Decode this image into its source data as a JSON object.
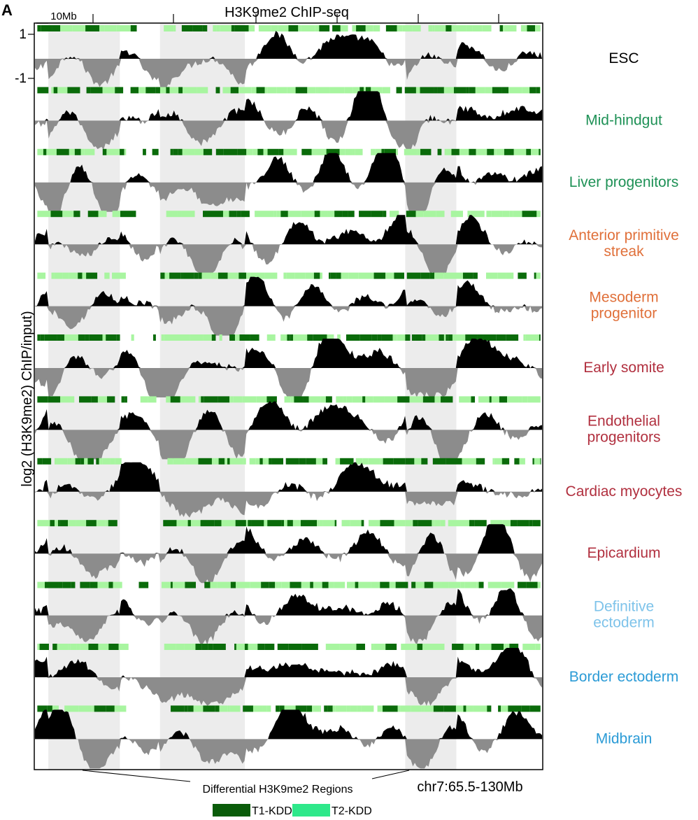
{
  "panel_letter": "A",
  "title": "H3K9me2 ChIP-seq",
  "scale_bar_label": "10Mb",
  "y_axis_label": "log2 (H3K9me2) ChIP/input)",
  "y_ticks": [
    "1",
    "-1"
  ],
  "region_label": "chr7:65.5-130Mb",
  "differential_label": "Differential H3K9me2 Regions",
  "legend": [
    {
      "label": "T1-KDD",
      "color": "#0a5c0a"
    },
    {
      "label": "T2-KDD",
      "color": "#2ee88a"
    }
  ],
  "colors": {
    "positive_signal": "#000000",
    "negative_signal": "#8c8c8c",
    "highlight": "#ececec",
    "kdd_t1": "#0a6b0a",
    "kdd_t2": "#a8f5a0"
  },
  "chart_data": {
    "type": "area",
    "x_range_mb": [
      65.5,
      130
    ],
    "y_range": [
      -1,
      1
    ],
    "highlighted_regions_mb": [
      [
        67.2,
        76.3
      ],
      [
        81.4,
        92.2
      ],
      [
        112.6,
        119.1
      ]
    ],
    "tracks": [
      {
        "name": "ESC",
        "color": "#000000"
      },
      {
        "name": "Mid-hindgut",
        "color": "#1e9156"
      },
      {
        "name": "Liver progenitors",
        "color": "#1e9156"
      },
      {
        "name": "Anterior primitive streak",
        "color": "#e0703a"
      },
      {
        "name": "Mesoderm progenitor",
        "color": "#e0703a"
      },
      {
        "name": "Early somite",
        "color": "#b1303f"
      },
      {
        "name": "Endothelial progenitors",
        "color": "#b1303f"
      },
      {
        "name": "Cardiac myocytes",
        "color": "#b1303f"
      },
      {
        "name": "Epicardium",
        "color": "#b1303f"
      },
      {
        "name": "Definitive ectoderm",
        "color": "#7ec3ea"
      },
      {
        "name": "Border ectoderm",
        "color": "#2b9bd6"
      },
      {
        "name": "Midbrain",
        "color": "#2b9bd6"
      }
    ]
  }
}
